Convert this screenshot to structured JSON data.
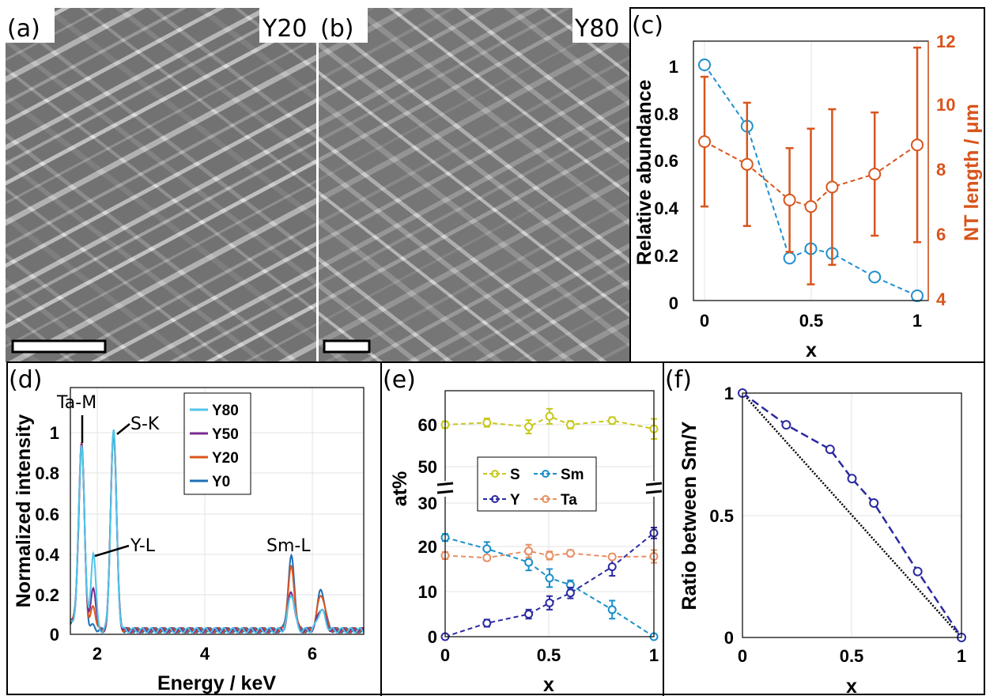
{
  "panels": {
    "a": {
      "label": "(a)",
      "sample": "Y20"
    },
    "b": {
      "label": "(b)",
      "sample": "Y80"
    },
    "c": {
      "label": "(c)"
    },
    "d": {
      "label": "(d)"
    },
    "e": {
      "label": "(e)"
    },
    "f": {
      "label": "(f)"
    }
  },
  "colors": {
    "blue": "#1f8fd0",
    "orange": "#d9541b",
    "yellow": "#c8c81c",
    "navy": "#2b2aa0",
    "salmon": "#e88f64"
  },
  "chart_data": [
    {
      "panel": "c",
      "type": "scatter",
      "xlabel": "x",
      "ylabel": "Relative abundance",
      "ylabel_right": "NT length / μm",
      "xlim": [
        -0.05,
        1.05
      ],
      "ylim": [
        0,
        1.1
      ],
      "ylim_right": [
        4,
        12
      ],
      "xticks": [
        "0",
        "0.5",
        "1"
      ],
      "yticks": [
        "0",
        "0.2",
        "0.4",
        "0.6",
        "0.8",
        "1"
      ],
      "yticks_right": [
        "4",
        "6",
        "8",
        "10",
        "12"
      ],
      "x": [
        0,
        0.2,
        0.4,
        0.5,
        0.6,
        0.8,
        1
      ],
      "series": [
        {
          "axis": "left",
          "values": [
            1.0,
            0.74,
            0.18,
            0.22,
            0.2,
            0.1,
            0.02
          ],
          "color": "#1f8fd0"
        },
        {
          "axis": "right",
          "values": [
            8.9,
            8.2,
            7.1,
            6.9,
            7.5,
            7.9,
            8.8
          ],
          "errors": [
            2.0,
            1.9,
            1.6,
            2.4,
            2.4,
            1.9,
            3.0
          ],
          "color": "#d9541b"
        }
      ]
    },
    {
      "panel": "d",
      "type": "line",
      "xlabel": "Energy / keV",
      "ylabel": "Normalized intensity",
      "xlim": [
        1.5,
        7
      ],
      "ylim": [
        0,
        1.1
      ],
      "xticks": [
        "2",
        "4",
        "6"
      ],
      "yticks": [
        "0",
        "0.2",
        "0.4",
        "0.6",
        "0.8",
        "1"
      ],
      "annotations": [
        "Ta-M",
        "S-K",
        "Y-L",
        "Sm-L"
      ],
      "series": [
        {
          "name": "Y80",
          "color": "#4fc6ea",
          "peaks": {
            "Ta": 0.92,
            "Y": 0.39,
            "S": 0.99,
            "Sm1": 0.18,
            "Sm2": 0.1
          }
        },
        {
          "name": "Y50",
          "color": "#7a2a8f",
          "peaks": {
            "Ta": 0.92,
            "Y": 0.22,
            "S": 0.99,
            "Sm1": 0.19,
            "Sm2": 0.11
          }
        },
        {
          "name": "Y20",
          "color": "#d9541b",
          "peaks": {
            "Ta": 0.92,
            "Y": 0.12,
            "S": 0.99,
            "Sm1": 0.31,
            "Sm2": 0.18
          }
        },
        {
          "name": "Y0",
          "color": "#1f6fb5",
          "peaks": {
            "Ta": 0.91,
            "Y": 0.02,
            "S": 0.99,
            "Sm1": 0.36,
            "Sm2": 0.2
          }
        }
      ]
    },
    {
      "panel": "e",
      "type": "line",
      "xlabel": "x",
      "ylabel": "at%",
      "xticks": [
        "0",
        "0.5",
        "1"
      ],
      "yticks": [
        "0",
        "10",
        "20",
        "30",
        "50",
        "60"
      ],
      "x": [
        0,
        0.2,
        0.4,
        0.5,
        0.6,
        0.8,
        1
      ],
      "series": [
        {
          "name": "S",
          "color": "#c8c81c",
          "values": [
            60,
            60.5,
            59.5,
            62,
            60,
            61,
            59
          ],
          "errors": [
            0.8,
            1.0,
            1.6,
            1.8,
            0.9,
            0.8,
            2.4
          ]
        },
        {
          "name": "Sm",
          "color": "#1a8fc9",
          "values": [
            22,
            19.5,
            16.5,
            13,
            11.5,
            6,
            0
          ],
          "errors": [
            0.8,
            1.5,
            1.8,
            2.0,
            1.0,
            2.0,
            0.3
          ]
        },
        {
          "name": "Y",
          "color": "#2b2aa0",
          "values": [
            0,
            3,
            5,
            7.5,
            9.7,
            15.5,
            23
          ],
          "errors": [
            0.2,
            0.8,
            1.0,
            1.5,
            1.2,
            2.0,
            1.2
          ]
        },
        {
          "name": "Ta",
          "color": "#e88f64",
          "values": [
            18,
            17.5,
            19,
            18,
            18.5,
            17.7,
            17.8
          ],
          "errors": [
            0.8,
            0.6,
            1.4,
            0.9,
            0.7,
            0.6,
            1.4
          ]
        }
      ]
    },
    {
      "panel": "f",
      "type": "line",
      "xlabel": "x",
      "ylabel": "Ratio between Sm/Y",
      "xlim": [
        0,
        1
      ],
      "ylim": [
        0,
        1
      ],
      "xticks": [
        "0",
        "0.5",
        "1"
      ],
      "yticks": [
        "0",
        "0.5",
        "1"
      ],
      "x": [
        0,
        0.2,
        0.4,
        0.5,
        0.6,
        0.8,
        1
      ],
      "series": [
        {
          "values": [
            1.0,
            0.87,
            0.77,
            0.65,
            0.55,
            0.27,
            0.0
          ],
          "color": "#2b2aa0"
        },
        {
          "values": [
            1.0,
            0.8,
            0.6,
            0.5,
            0.4,
            0.2,
            0.0
          ],
          "color": "#000000"
        }
      ]
    }
  ]
}
